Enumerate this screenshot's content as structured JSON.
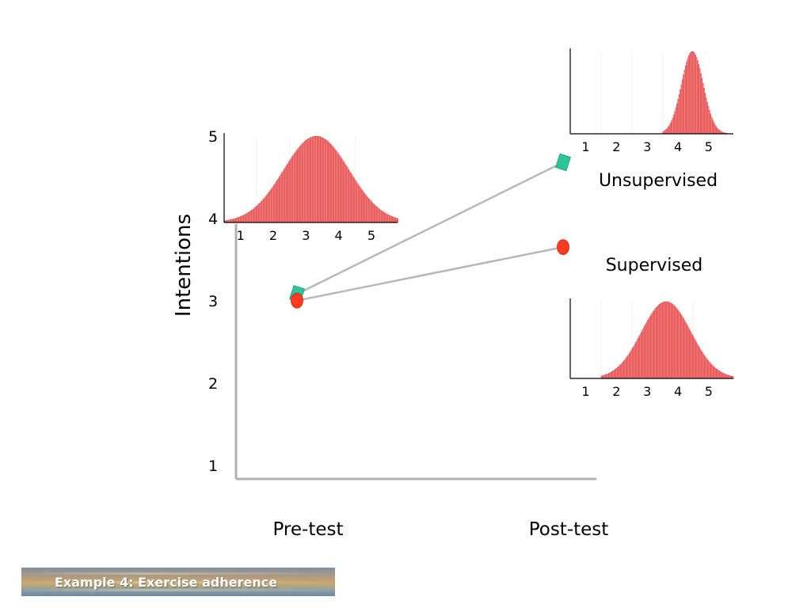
{
  "colors": {
    "dist_fill": "#f08080",
    "dist_line": "#e03030",
    "unsupervised_marker": "#2cc49a",
    "supervised_marker": "#ff3b1f",
    "axis": "#b0b0b0",
    "connector": "#b8b8b8"
  },
  "footer": {
    "title": "Example 4: Exercise adherence"
  },
  "chart_data": [
    {
      "type": "line",
      "ylabel": "Intentions",
      "categories": [
        "Pre-test",
        "Post-test"
      ],
      "yticks": [
        "1",
        "2",
        "3",
        "4",
        "5"
      ],
      "ylim": [
        1,
        5
      ],
      "series": [
        {
          "key": "unsupervised",
          "marker": "diamond",
          "values": [
            3.15,
            4.75
          ]
        },
        {
          "key": "supervised",
          "marker": "circle",
          "values": [
            3.07,
            3.72
          ]
        }
      ],
      "annotations": [
        "Unsupervised",
        "Supervised"
      ]
    },
    {
      "type": "area",
      "id": "pre_test_distribution",
      "xticks": [
        "1",
        "2",
        "3",
        "4",
        "5"
      ],
      "xlim": [
        0.5,
        5.8
      ],
      "mean": 3.3,
      "sd": 1.0,
      "lower_cutoff": 0.5
    },
    {
      "type": "area",
      "id": "unsupervised_distribution",
      "label": "Unsupervised",
      "xticks": [
        "1",
        "2",
        "3",
        "4",
        "5"
      ],
      "xlim": [
        0.5,
        5.8
      ],
      "mean": 4.45,
      "sd": 0.35,
      "lower_cutoff": 3.5
    },
    {
      "type": "area",
      "id": "supervised_distribution",
      "label": "Supervised",
      "xticks": [
        "1",
        "2",
        "3",
        "4",
        "5"
      ],
      "xlim": [
        0.5,
        5.8
      ],
      "mean": 3.6,
      "sd": 0.8,
      "lower_cutoff": 1.5
    }
  ]
}
